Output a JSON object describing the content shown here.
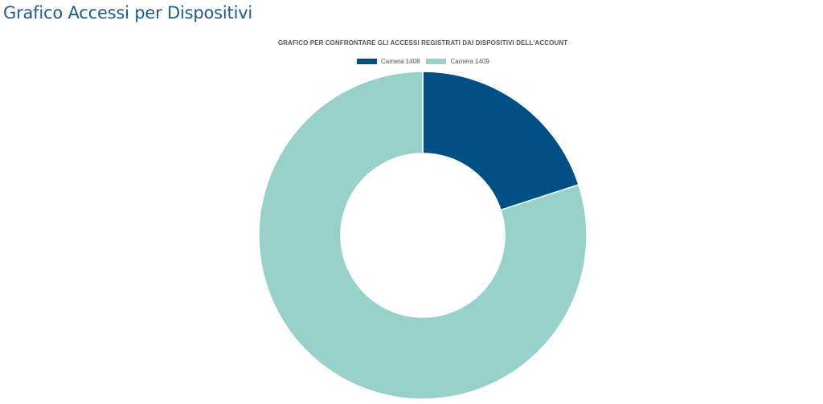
{
  "page": {
    "heading": "Grafico Accessi per Dispositivi"
  },
  "chart_data": {
    "type": "pie",
    "variant": "doughnut",
    "title": "GRAFICO PER CONFRONTARE GLI ACCESSI REGISTRATI DAI DISPOSITIVI DELL'ACCOUNT",
    "legend_position": "top",
    "categories": [
      "Camera 1408",
      "Camera 1409"
    ],
    "values": [
      20,
      80
    ],
    "colors": [
      "#004f87",
      "#97d1c9"
    ]
  }
}
